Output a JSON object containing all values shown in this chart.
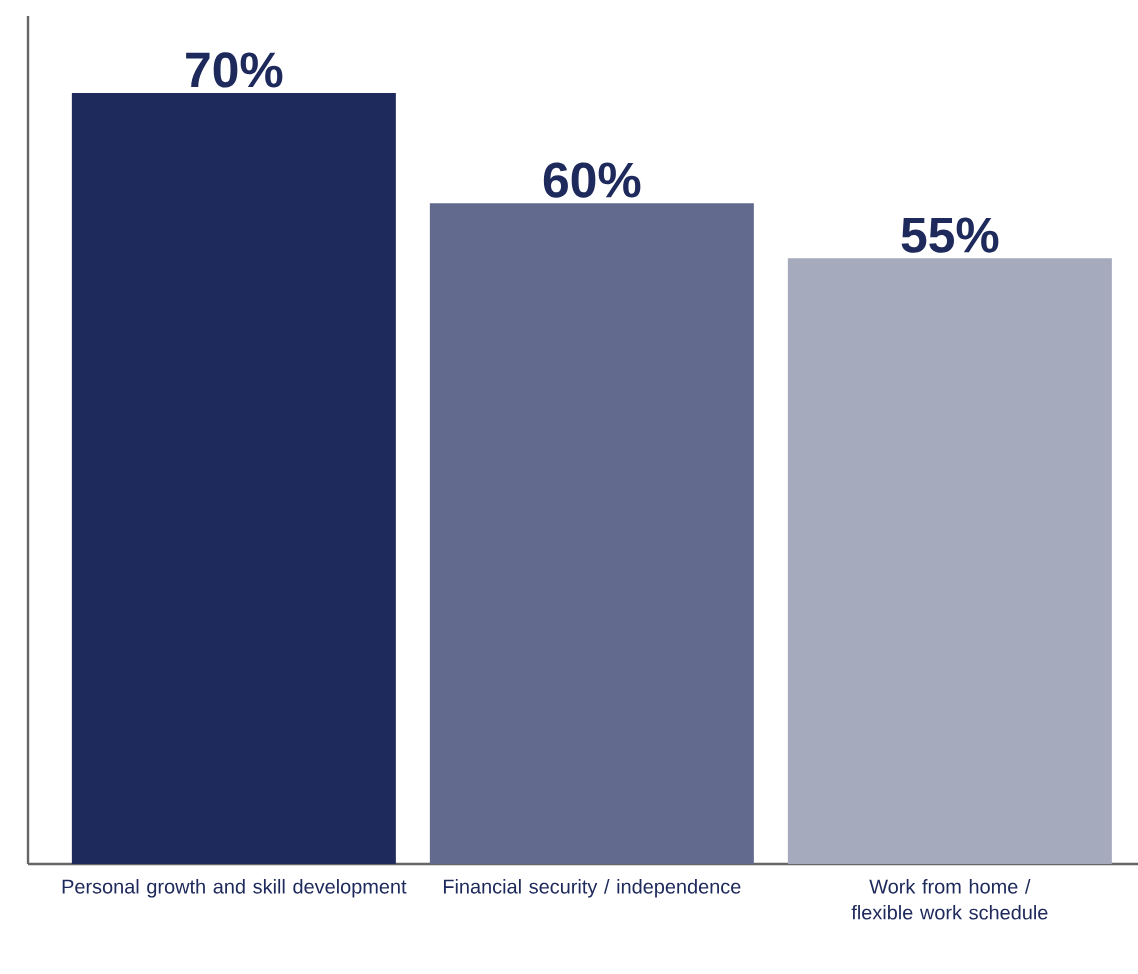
{
  "chart_data": {
    "type": "bar",
    "categories": [
      "Personal growth and skill development",
      "Financial security / independence",
      "Work from home / flexible work schedule"
    ],
    "values": [
      70,
      60,
      55
    ],
    "value_labels": [
      "70%",
      "60%",
      "55%"
    ],
    "colors": [
      "#1f2a5c",
      "#626b8e",
      "#a6aabd"
    ],
    "ylim": [
      0,
      77
    ]
  }
}
